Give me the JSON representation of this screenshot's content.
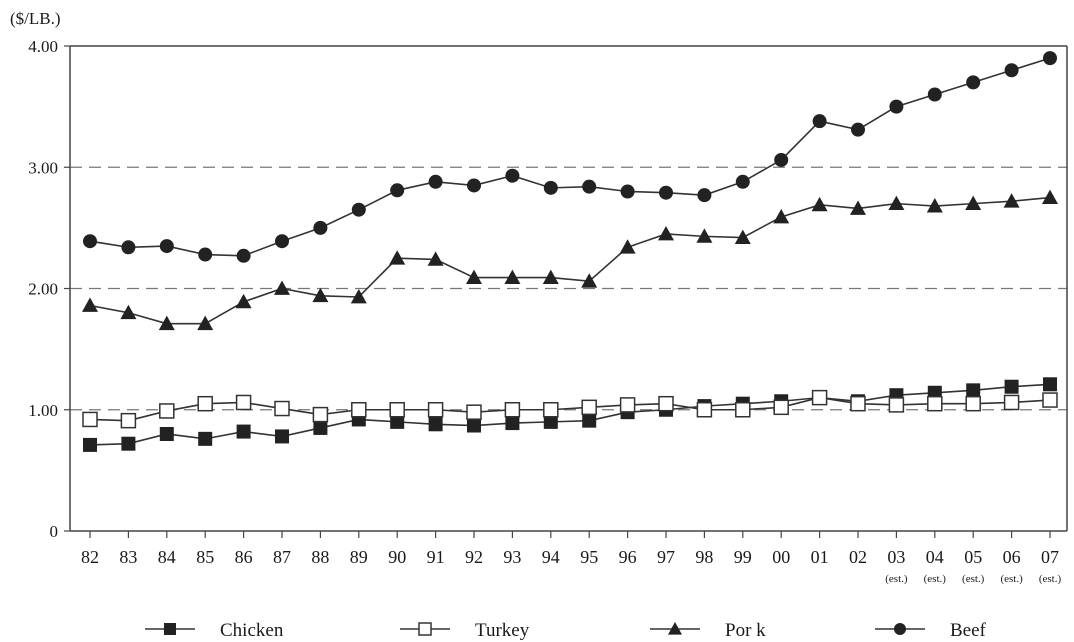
{
  "chart_data": {
    "type": "line",
    "title": "",
    "xlabel": "",
    "ylabel": "($/LB.)",
    "ylim": [
      0,
      4
    ],
    "y_ticks": [
      "0",
      "1.00",
      "2.00",
      "3.00",
      "4.00"
    ],
    "y_tick_values": [
      0,
      1,
      2,
      3,
      4
    ],
    "gridlines_dashed_at": [
      1,
      2,
      3
    ],
    "legend_position": "bottom",
    "categories": [
      "82",
      "83",
      "84",
      "85",
      "86",
      "87",
      "88",
      "89",
      "90",
      "91",
      "92",
      "93",
      "94",
      "95",
      "96",
      "97",
      "98",
      "99",
      "00",
      "01",
      "02",
      "03",
      "04",
      "05",
      "06",
      "07"
    ],
    "category_sublabels": [
      "",
      "",
      "",
      "",
      "",
      "",
      "",
      "",
      "",
      "",
      "",
      "",
      "",
      "",
      "",
      "",
      "",
      "",
      "",
      "",
      "",
      "(est.)",
      "(est.)",
      "(est.)",
      "(est.)",
      "(est.)"
    ],
    "series": [
      {
        "name": "Chicken",
        "marker": "square-filled",
        "values": [
          0.71,
          0.72,
          0.8,
          0.76,
          0.82,
          0.78,
          0.85,
          0.92,
          0.9,
          0.88,
          0.87,
          0.89,
          0.9,
          0.91,
          0.98,
          1.0,
          1.03,
          1.05,
          1.07,
          1.1,
          1.07,
          1.12,
          1.14,
          1.16,
          1.19,
          1.21
        ]
      },
      {
        "name": "Turkey",
        "marker": "square-open",
        "values": [
          0.92,
          0.91,
          0.99,
          1.05,
          1.06,
          1.01,
          0.96,
          1.0,
          1.0,
          1.0,
          0.98,
          1.0,
          1.0,
          1.02,
          1.04,
          1.05,
          1.0,
          1.0,
          1.02,
          1.1,
          1.05,
          1.04,
          1.05,
          1.05,
          1.06,
          1.08
        ]
      },
      {
        "name": "Por k",
        "marker": "triangle-filled",
        "values": [
          1.86,
          1.8,
          1.71,
          1.71,
          1.89,
          2.0,
          1.94,
          1.93,
          2.25,
          2.24,
          2.09,
          2.09,
          2.09,
          2.06,
          2.34,
          2.45,
          2.43,
          2.42,
          2.59,
          2.69,
          2.66,
          2.7,
          2.68,
          2.7,
          2.72,
          2.75
        ]
      },
      {
        "name": "Beef",
        "marker": "circle-filled",
        "values": [
          2.39,
          2.34,
          2.35,
          2.28,
          2.27,
          2.39,
          2.5,
          2.65,
          2.81,
          2.88,
          2.85,
          2.93,
          2.83,
          2.84,
          2.8,
          2.79,
          2.77,
          2.88,
          3.06,
          3.38,
          3.31,
          3.5,
          3.6,
          3.7,
          3.8,
          3.9
        ]
      }
    ]
  }
}
